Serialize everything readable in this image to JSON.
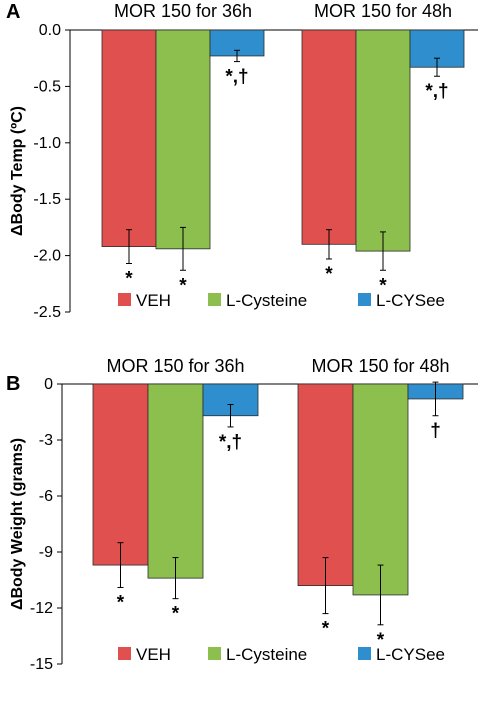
{
  "chart_data": [
    {
      "panel": "A",
      "type": "bar",
      "categories": [
        "MOR 150 for 36h",
        "MOR 150 for 48h"
      ],
      "ylabel": "ΔBody Temp (ºC)",
      "ylim": [
        -2.5,
        0.0
      ],
      "yticks": [
        0.0,
        -0.5,
        -1.0,
        -1.5,
        -2.0,
        -2.5
      ],
      "ytick_labels": [
        "0.0",
        "-0.5",
        "-1.0",
        "-1.5",
        "-2.0",
        "-2.5"
      ],
      "grid": false,
      "legend_position": "bottom",
      "series": [
        {
          "name": "VEH",
          "color": "#e0504e",
          "values": [
            -1.92,
            -1.9
          ],
          "errors": [
            0.15,
            0.13
          ],
          "sig": [
            "*",
            "*"
          ]
        },
        {
          "name": "L-Cysteine",
          "color": "#8cbf4e",
          "values": [
            -1.94,
            -1.96
          ],
          "errors": [
            0.19,
            0.17
          ],
          "sig": [
            "*",
            "*"
          ]
        },
        {
          "name": "L-CYSee",
          "color": "#2f8fce",
          "values": [
            -0.23,
            -0.33
          ],
          "errors": [
            0.05,
            0.08
          ],
          "sig": [
            "*,†",
            "*,†"
          ]
        }
      ]
    },
    {
      "panel": "B",
      "type": "bar",
      "categories": [
        "MOR 150 for 36h",
        "MOR 150 for 48h"
      ],
      "ylabel": "ΔBody Weight (grams)",
      "ylim": [
        -15,
        0
      ],
      "yticks": [
        0,
        -3,
        -6,
        -9,
        -12,
        -15
      ],
      "ytick_labels": [
        "0",
        "-3",
        "-6",
        "-9",
        "-12",
        "-15"
      ],
      "grid": false,
      "legend_position": "bottom",
      "series": [
        {
          "name": "VEH",
          "color": "#e0504e",
          "values": [
            -9.7,
            -10.8
          ],
          "errors": [
            1.2,
            1.5
          ],
          "sig": [
            "*",
            "*"
          ]
        },
        {
          "name": "L-Cysteine",
          "color": "#8cbf4e",
          "values": [
            -10.4,
            -11.3
          ],
          "errors": [
            1.1,
            1.6
          ],
          "sig": [
            "*",
            "*"
          ]
        },
        {
          "name": "L-CYSee",
          "color": "#2f8fce",
          "values": [
            -1.7,
            -0.8
          ],
          "errors": [
            0.6,
            0.9
          ],
          "sig": [
            "*,†",
            "†"
          ]
        }
      ]
    }
  ]
}
